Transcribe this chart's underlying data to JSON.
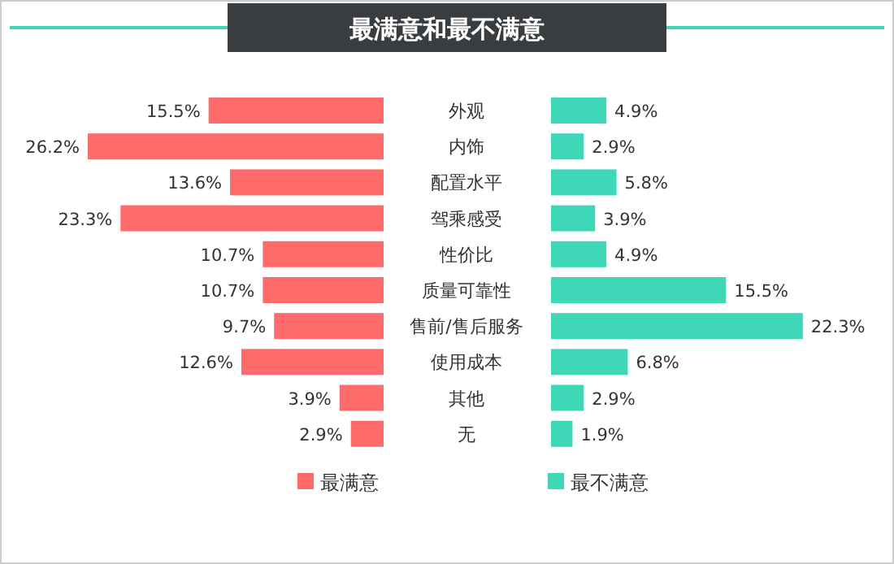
{
  "chart_data": [
    {
      "type": "bar",
      "orientation": "horizontal",
      "title": "最满意和最不满意",
      "categories": [
        "外观",
        "内饰",
        "配置水平",
        "驾乘感受",
        "性价比",
        "质量可靠性",
        "售前/售后服务",
        "使用成本",
        "其他",
        "无"
      ],
      "series": [
        {
          "name": "最满意",
          "color": "#ff6a6a",
          "values": [
            15.5,
            26.2,
            13.6,
            23.3,
            10.7,
            10.7,
            9.7,
            12.6,
            3.9,
            2.9
          ],
          "value_labels": [
            "15.5%",
            "26.2%",
            "13.6%",
            "23.3%",
            "10.7%",
            "10.7%",
            "9.7%",
            "12.6%",
            "3.9%",
            "2.9%"
          ]
        }
      ],
      "legend": "bottom"
    },
    {
      "type": "bar",
      "orientation": "horizontal",
      "series": [
        {
          "name": "最不满意",
          "color": "#3ed8b8",
          "values": [
            4.9,
            2.9,
            5.8,
            3.9,
            4.9,
            15.5,
            22.3,
            6.8,
            2.9,
            1.9
          ],
          "value_labels": [
            "4.9%",
            "2.9%",
            "5.8%",
            "3.9%",
            "4.9%",
            "15.5%",
            "22.3%",
            "6.8%",
            "2.9%",
            "1.9%"
          ]
        }
      ],
      "legend": "bottom"
    }
  ]
}
